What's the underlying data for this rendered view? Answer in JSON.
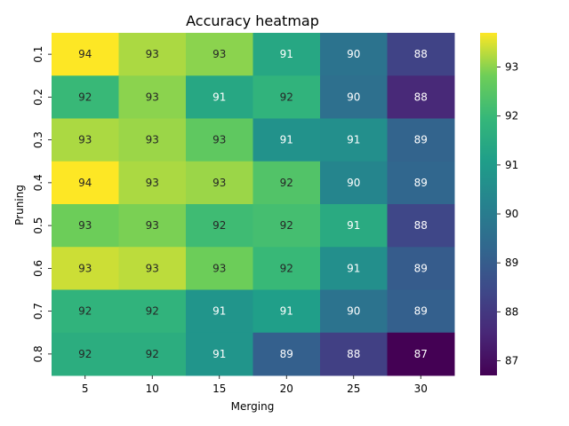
{
  "chart_data": {
    "type": "heatmap",
    "title": "Accuracy heatmap",
    "xlabel": "Merging",
    "ylabel": "Pruning",
    "x": [
      "5",
      "10",
      "15",
      "20",
      "25",
      "30"
    ],
    "y": [
      "0.1",
      "0.2",
      "0.3",
      "0.4",
      "0.5",
      "0.6",
      "0.7",
      "0.8"
    ],
    "values": [
      [
        93.7,
        93.2,
        93.0,
        91.4,
        89.7,
        88.3
      ],
      [
        92.0,
        93.0,
        91.4,
        91.8,
        89.6,
        87.6
      ],
      [
        93.2,
        93.1,
        92.6,
        90.7,
        90.6,
        89.2
      ],
      [
        93.8,
        93.2,
        93.1,
        92.4,
        90.3,
        89.3
      ],
      [
        92.8,
        92.9,
        92.1,
        92.2,
        91.5,
        88.4
      ],
      [
        93.4,
        93.3,
        92.8,
        92.0,
        90.6,
        89.0
      ],
      [
        91.8,
        91.8,
        90.8,
        91.1,
        89.7,
        89.1
      ],
      [
        91.6,
        91.6,
        90.8,
        89.1,
        88.2,
        86.7
      ]
    ],
    "annotations": [
      [
        "94",
        "93",
        "93",
        "91",
        "90",
        "88"
      ],
      [
        "92",
        "93",
        "91",
        "92",
        "90",
        "88"
      ],
      [
        "93",
        "93",
        "93",
        "91",
        "91",
        "89"
      ],
      [
        "94",
        "93",
        "93",
        "92",
        "90",
        "89"
      ],
      [
        "93",
        "93",
        "92",
        "92",
        "91",
        "88"
      ],
      [
        "93",
        "93",
        "93",
        "92",
        "91",
        "89"
      ],
      [
        "92",
        "92",
        "91",
        "91",
        "90",
        "89"
      ],
      [
        "92",
        "92",
        "91",
        "89",
        "88",
        "87"
      ]
    ],
    "colorbar": {
      "min": 86.7,
      "max": 93.7,
      "ticks": [
        87,
        88,
        89,
        90,
        91,
        92,
        93
      ]
    },
    "colormap": "viridis",
    "grid": false
  }
}
